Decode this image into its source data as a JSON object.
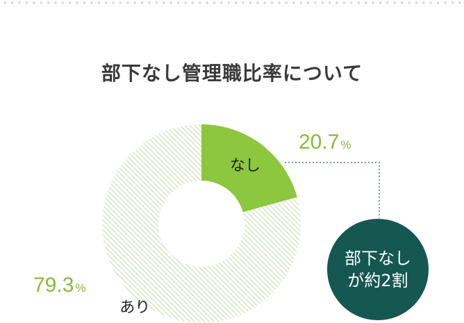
{
  "chart_data": {
    "type": "pie",
    "title": "部下なし管理職比率について",
    "categories": [
      "なし",
      "あり"
    ],
    "values": [
      20.7,
      79.3
    ],
    "value_labels": [
      "20.7",
      "79.3"
    ],
    "unit": "%",
    "donut": true,
    "colors": {
      "highlight": "#8dc63f",
      "hatch": "#cfe3b4",
      "callout": "#155751",
      "percent_text": "#86bc3a"
    }
  },
  "callout": {
    "line1": "部下なし",
    "line2": "が約2割"
  }
}
